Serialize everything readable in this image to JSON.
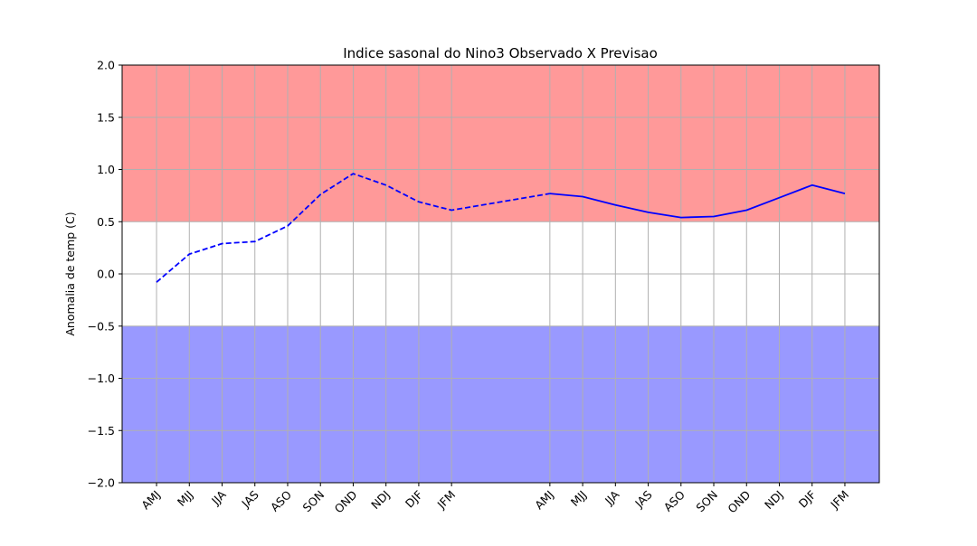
{
  "chart_data": {
    "type": "line",
    "title": "Indice sasonal do Nino3 Observado X Previsao",
    "xlabel": "",
    "ylabel": "Anomalia de temp (C)",
    "ylim": [
      -2.0,
      2.0
    ],
    "y_ticks": [
      "2.0",
      "1.5",
      "1.0",
      "0.5",
      "0.0",
      "−0.5",
      "−1.0",
      "−1.5",
      "−2.0"
    ],
    "y_tick_values": [
      2.0,
      1.5,
      1.0,
      0.5,
      0.0,
      -0.5,
      -1.0,
      -1.5,
      -2.0
    ],
    "grid": true,
    "bands": [
      {
        "from": 0.5,
        "to": 2.0,
        "color": "#ff9999"
      },
      {
        "from": -2.0,
        "to": -0.5,
        "color": "#9999ff"
      }
    ],
    "categories": [
      "AMJ",
      "MJJ",
      "JJA",
      "JAS",
      "ASO",
      "SON",
      "OND",
      "NDJ",
      "DJF",
      "JFM",
      "AMJ",
      "MJJ",
      "JJA",
      "JAS",
      "ASO",
      "SON",
      "OND",
      "NDJ",
      "DJF",
      "JFM"
    ],
    "category_positions": [
      0,
      1,
      2,
      3,
      4,
      5,
      6,
      7,
      8,
      9,
      12,
      13,
      14,
      15,
      16,
      17,
      18,
      19,
      20,
      21
    ],
    "xlim": [
      -1.05,
      22.05
    ],
    "series": [
      {
        "style": "dashed",
        "color": "#0000ff",
        "x": [
          0,
          1,
          2,
          3,
          4,
          5,
          6,
          7,
          8,
          9,
          12
        ],
        "values": [
          -0.08,
          0.19,
          0.29,
          0.31,
          0.46,
          0.76,
          0.96,
          0.85,
          0.69,
          0.61,
          0.77
        ]
      },
      {
        "style": "solid",
        "color": "#0000ff",
        "x": [
          12,
          13,
          14,
          15,
          16,
          17,
          18,
          19,
          20,
          21
        ],
        "values": [
          0.77,
          0.74,
          0.66,
          0.59,
          0.54,
          0.55,
          0.61,
          0.73,
          0.85,
          0.77
        ]
      }
    ]
  }
}
